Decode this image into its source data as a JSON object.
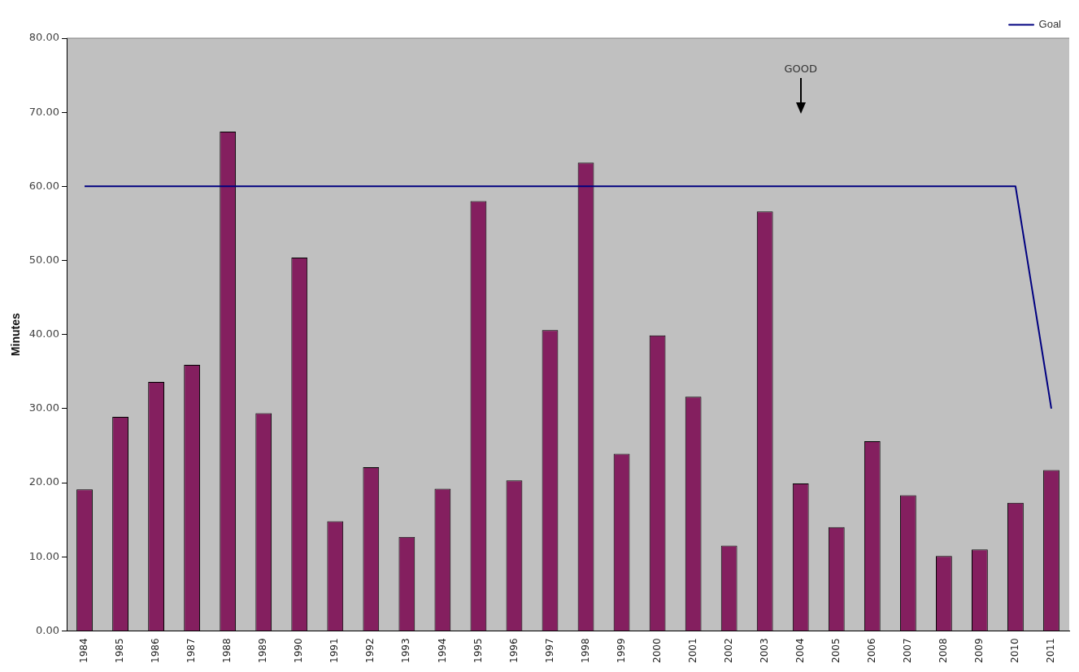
{
  "chart_data": {
    "type": "bar",
    "ylabel": "Minutes",
    "annotations": [
      "GOOD"
    ],
    "categories": [
      "1984",
      "1985",
      "1986",
      "1987",
      "1988",
      "1989",
      "1990",
      "1991",
      "1992",
      "1993",
      "1994",
      "1995",
      "1996",
      "1997",
      "1998",
      "1999",
      "2000",
      "2001",
      "2002",
      "2003",
      "2004",
      "2005",
      "2006",
      "2007",
      "2008",
      "2009",
      "2010",
      "2011"
    ],
    "series": [
      {
        "color": "#841f5f",
        "values": [
          19.1,
          28.9,
          33.6,
          35.9,
          67.4,
          29.4,
          50.4,
          14.8,
          22.1,
          12.7,
          19.2,
          58.0,
          20.3,
          40.6,
          63.2,
          23.9,
          39.9,
          31.6,
          11.5,
          56.6,
          19.9,
          14.0,
          25.6,
          18.3,
          10.1,
          11.0,
          17.3,
          21.7
        ]
      },
      {
        "type": "line",
        "name": "Goal",
        "color": "#000080",
        "values": [
          60,
          60,
          60,
          60,
          60,
          60,
          60,
          60,
          60,
          60,
          60,
          60,
          60,
          60,
          60,
          60,
          60,
          60,
          60,
          60,
          60,
          60,
          60,
          60,
          60,
          60,
          60,
          30
        ]
      }
    ],
    "ylim": [
      0,
      80
    ],
    "yticks": [
      {
        "value": 0,
        "label": "0.00"
      },
      {
        "value": 10,
        "label": "10.00"
      },
      {
        "value": 20,
        "label": "20.00"
      },
      {
        "value": 30,
        "label": "30.00"
      },
      {
        "value": 40,
        "label": "40.00"
      },
      {
        "value": 50,
        "label": "50.00"
      },
      {
        "value": 60,
        "label": "60.00"
      },
      {
        "value": 70,
        "label": "70.00"
      },
      {
        "value": 80,
        "label": "80.00"
      }
    ],
    "grid": false,
    "legend": "top right",
    "marker": "none"
  }
}
